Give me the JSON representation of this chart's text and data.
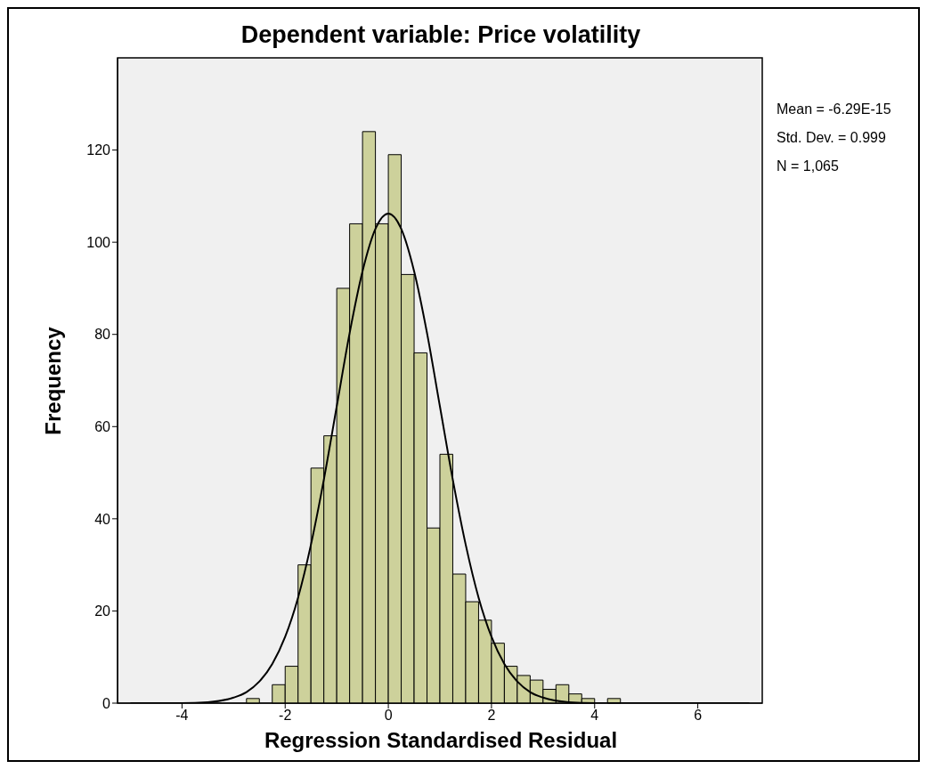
{
  "chart_data": {
    "type": "histogram",
    "title": "Dependent variable: Price volatility",
    "xlabel": "Regression Standardised Residual",
    "ylabel": "Frequency",
    "bins": [
      -2.75,
      -2.5,
      -2.25,
      -2,
      -1.75,
      -1.5,
      -1.25,
      -1,
      -0.75,
      -0.5,
      -0.25,
      0,
      0.25,
      0.5,
      0.75,
      1,
      1.25,
      1.5,
      1.75,
      2,
      2.25,
      2.5,
      2.75,
      3,
      3.25,
      3.5,
      3.75,
      4,
      4.25,
      4.5
    ],
    "values": [
      1,
      0,
      4,
      8,
      30,
      51,
      58,
      90,
      104,
      124,
      104,
      119,
      93,
      76,
      38,
      54,
      28,
      22,
      18,
      13,
      8,
      6,
      5,
      3,
      4,
      2,
      1,
      0,
      1
    ],
    "color": "#cdd19b",
    "series": [
      {
        "type": "line",
        "color": "#000000",
        "x": [
          -5,
          -4,
          -3.5,
          -3,
          -2.75,
          -2.5,
          -2.25,
          -2,
          -1.75,
          -1.5,
          -1.25,
          -1,
          -0.75,
          -0.5,
          -0.25,
          0,
          0.25,
          0.5,
          0.75,
          1,
          1.25,
          1.5,
          1.75,
          2,
          2.25,
          2.5,
          2.75,
          3,
          3.5,
          4,
          5,
          6,
          7
        ],
        "values": [
          0,
          0,
          0.2,
          1.2,
          2.4,
          4.7,
          8.5,
          14.4,
          22.9,
          34.4,
          48.5,
          64.4,
          80.3,
          93.7,
          102.9,
          106.2,
          102.9,
          93.7,
          80.3,
          64.4,
          48.5,
          34.4,
          22.9,
          14.4,
          8.5,
          4.7,
          2.4,
          1.2,
          0.2,
          0,
          0,
          0,
          0
        ]
      }
    ],
    "xlim": [
      -5.25,
      7.25
    ],
    "xticks": [
      -4,
      -2,
      0,
      2,
      4,
      6
    ],
    "ylim": [
      0,
      140
    ],
    "yticks": [
      0,
      20,
      40,
      60,
      80,
      100,
      120
    ],
    "grid": false,
    "annotations": [
      "Mean = -6.29E-15",
      "Std. Dev. = 0.999",
      "N = 1,065"
    ]
  }
}
